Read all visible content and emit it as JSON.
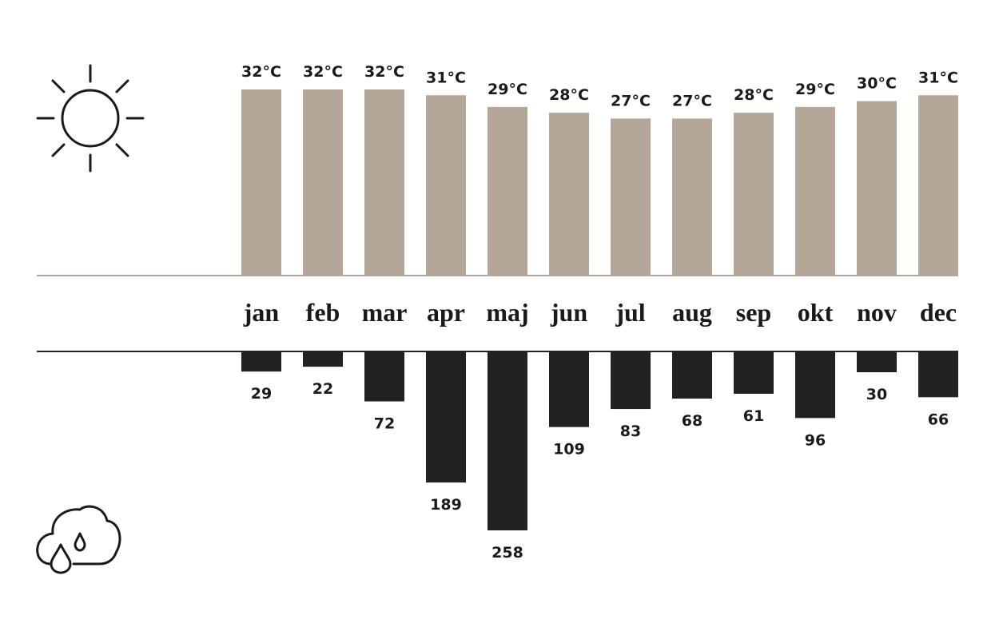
{
  "chart_data": {
    "type": "bar",
    "categories": [
      "jan",
      "feb",
      "mar",
      "apr",
      "maj",
      "jun",
      "jul",
      "aug",
      "sep",
      "okt",
      "nov",
      "dec"
    ],
    "series": [
      {
        "color": "#b5a69a",
        "direction": "up",
        "values": [
          32,
          32,
          32,
          31,
          29,
          28,
          27,
          27,
          28,
          29,
          30,
          31
        ],
        "value_labels": [
          "32°C",
          "32°C",
          "32°C",
          "31°C",
          "29°C",
          "28°C",
          "27°C",
          "27°C",
          "28°C",
          "29°C",
          "30°C",
          "31°C"
        ]
      },
      {
        "color": "#222222",
        "direction": "down",
        "values": [
          29,
          22,
          72,
          189,
          258,
          109,
          83,
          68,
          61,
          96,
          30,
          66
        ]
      }
    ]
  }
}
